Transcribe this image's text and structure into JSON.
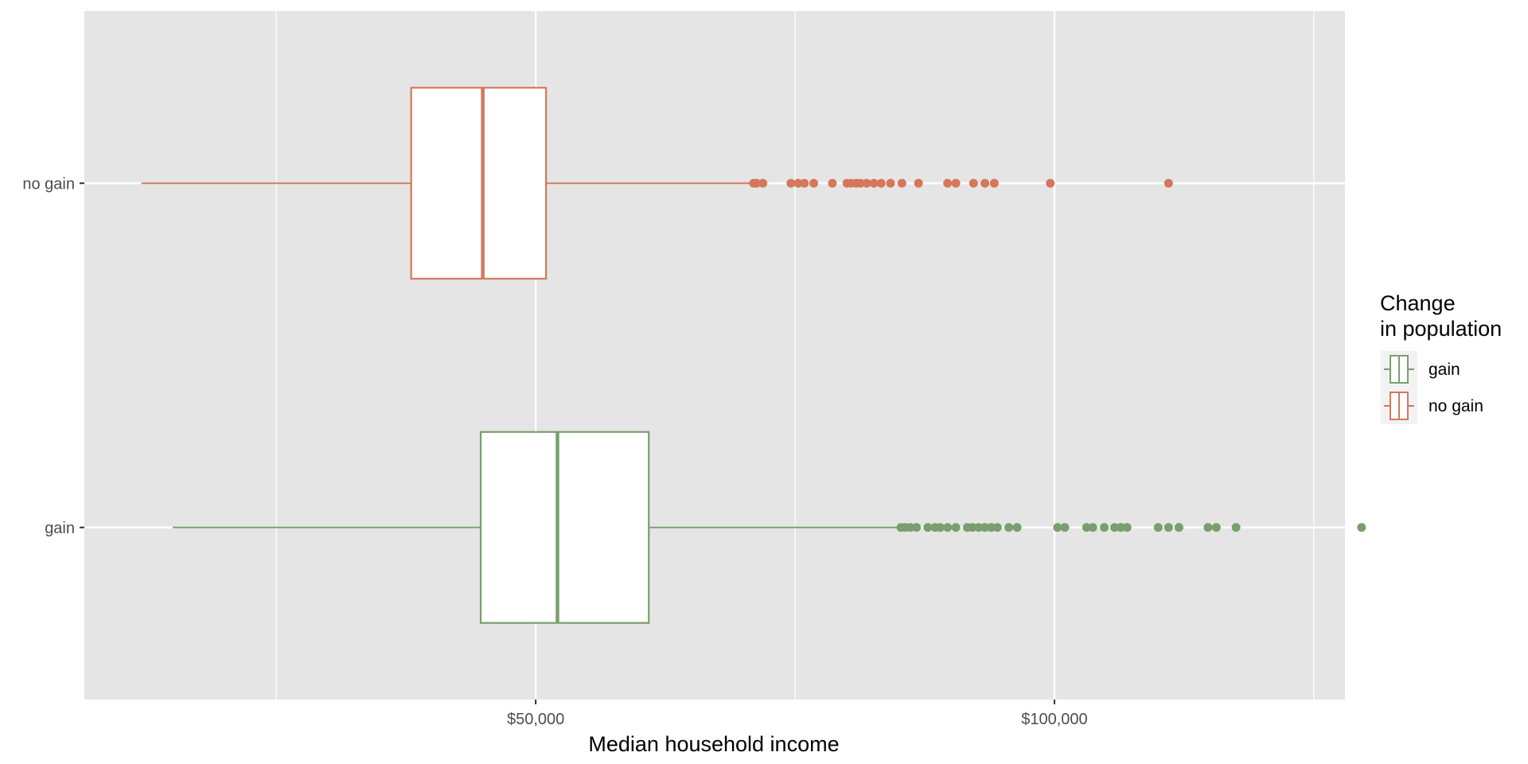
{
  "chart_data": {
    "type": "boxplot",
    "orientation": "horizontal",
    "xlabel": "Median household income",
    "ylabel": "",
    "xlim": [
      6500,
      128000
    ],
    "x_ticks": [
      50000,
      100000
    ],
    "x_tick_labels": [
      "$50,000",
      "$100,000"
    ],
    "x_minor_gridlines": [
      25000,
      75000,
      125000
    ],
    "categories": [
      "no gain",
      "gain"
    ],
    "grid": true,
    "legend": {
      "title_lines": [
        "Change",
        "in population"
      ],
      "position": "right",
      "entries": [
        {
          "label": "gain",
          "color": "#7a9e6e"
        },
        {
          "label": "no gain",
          "color": "#d4775a"
        }
      ]
    },
    "series": [
      {
        "name": "no gain",
        "color": "#d4775a",
        "whisker_low": 12000,
        "q1": 38000,
        "median": 44900,
        "q3": 51000,
        "whisker_high": 71000,
        "outliers": [
          71000,
          71300,
          71900,
          74600,
          75300,
          75900,
          76800,
          78600,
          80000,
          80400,
          80900,
          81300,
          81900,
          82600,
          83300,
          84200,
          85300,
          86900,
          89700,
          90500,
          92200,
          93300,
          94200,
          99600,
          111000
        ]
      },
      {
        "name": "gain",
        "color": "#7a9e6e",
        "whisker_low": 15000,
        "q1": 44700,
        "median": 52100,
        "q3": 60900,
        "whisker_high": 85000,
        "outliers": [
          85200,
          85600,
          86100,
          86700,
          87800,
          88500,
          89000,
          89700,
          90500,
          91600,
          92100,
          92700,
          93300,
          93900,
          94500,
          95600,
          96400,
          100300,
          101000,
          103100,
          103700,
          104800,
          105800,
          106400,
          107000,
          110000,
          111000,
          112000,
          114800,
          115600,
          117500,
          129600
        ]
      }
    ]
  }
}
